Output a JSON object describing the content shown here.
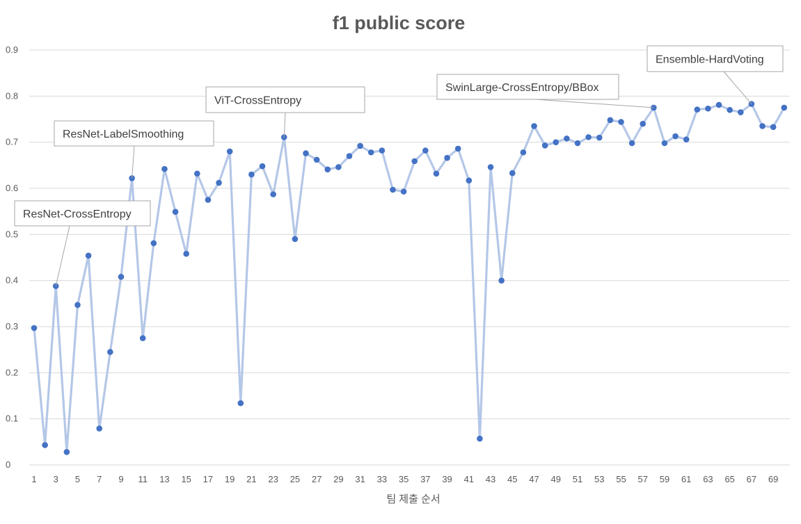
{
  "chart_data": {
    "type": "line",
    "title": "f1 public score",
    "xlabel": "팀 제출 순서",
    "ylabel": "",
    "ylim": [
      0,
      0.9
    ],
    "yticks": [
      "0",
      "0.1",
      "0.2",
      "0.3",
      "0.4",
      "0.5",
      "0.6",
      "0.7",
      "0.8",
      "0.9"
    ],
    "xticks": [
      "1",
      "3",
      "5",
      "7",
      "9",
      "11",
      "13",
      "15",
      "17",
      "19",
      "21",
      "23",
      "25",
      "27",
      "29",
      "31",
      "33",
      "35",
      "37",
      "39",
      "41",
      "43",
      "45",
      "47",
      "49",
      "51",
      "53",
      "55",
      "57",
      "59",
      "61",
      "63",
      "65",
      "67",
      "69"
    ],
    "grid": true,
    "x": [
      1,
      2,
      3,
      4,
      5,
      6,
      7,
      8,
      9,
      10,
      11,
      12,
      13,
      14,
      15,
      16,
      17,
      18,
      19,
      20,
      21,
      22,
      23,
      24,
      25,
      26,
      27,
      28,
      29,
      30,
      31,
      32,
      33,
      34,
      35,
      36,
      37,
      38,
      39,
      40,
      41,
      42,
      43,
      44,
      45,
      46,
      47,
      48,
      49,
      50,
      51,
      52,
      53,
      54,
      55,
      56,
      57,
      58,
      59,
      60,
      61,
      62,
      63,
      64,
      65,
      66,
      67,
      68,
      69,
      70
    ],
    "series": [
      {
        "values": [
          0.297,
          0.043,
          0.388,
          0.028,
          0.347,
          0.454,
          0.079,
          0.245,
          0.408,
          0.622,
          0.275,
          0.481,
          0.642,
          0.549,
          0.458,
          0.632,
          0.575,
          0.612,
          0.68,
          0.134,
          0.63,
          0.648,
          0.587,
          0.711,
          0.49,
          0.676,
          0.662,
          0.641,
          0.646,
          0.67,
          0.692,
          0.678,
          0.682,
          0.597,
          0.593,
          0.659,
          0.682,
          0.632,
          0.666,
          0.686,
          0.617,
          0.057,
          0.646,
          0.4,
          0.633,
          0.678,
          0.735,
          0.693,
          0.7,
          0.708,
          0.698,
          0.711,
          0.71,
          0.748,
          0.744,
          0.698,
          0.74,
          0.775,
          0.698,
          0.713,
          0.706,
          0.771,
          0.773,
          0.781,
          0.77,
          0.765,
          0.783,
          0.735,
          0.733,
          0.775
        ],
        "color": "#4472c4",
        "line_color": "#b4c7e7"
      }
    ],
    "annotations": [
      {
        "text": "ResNet-CrossEntropy",
        "x": 3
      },
      {
        "text": "ResNet-LabelSmoothing",
        "x": 10
      },
      {
        "text": "ViT-CrossEntropy",
        "x": 24
      },
      {
        "text": "SwinLarge-CrossEntropy/BBox",
        "x": 58
      },
      {
        "text": "Ensemble-HardVoting",
        "x": 67
      }
    ]
  }
}
